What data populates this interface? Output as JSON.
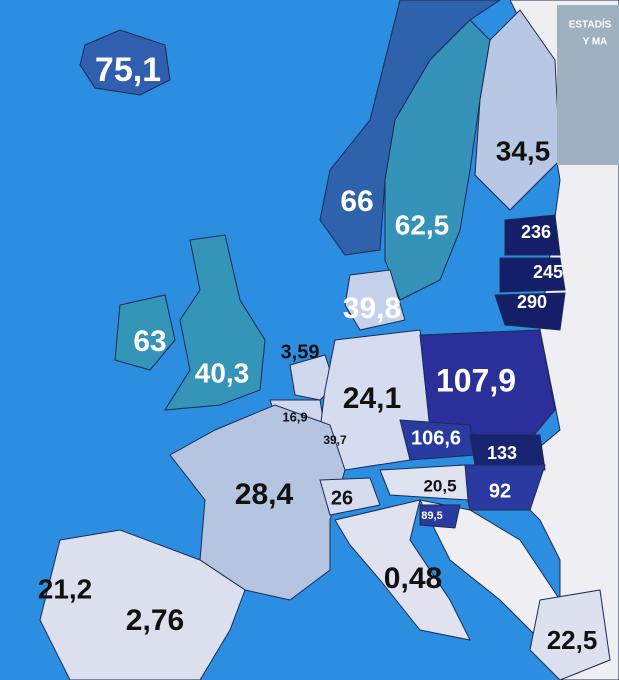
{
  "header": {
    "line1": "ESTADÍS",
    "line2": "Y MA"
  },
  "regions": [
    {
      "label": "75,1"
    },
    {
      "label": "66"
    },
    {
      "label": "62,5"
    },
    {
      "label": "34,5"
    },
    {
      "label": "236"
    },
    {
      "label": "245"
    },
    {
      "label": "290"
    },
    {
      "label": "63"
    },
    {
      "label": "40,3"
    },
    {
      "label": "39,8"
    },
    {
      "label": "3,59"
    },
    {
      "label": "24,1"
    },
    {
      "label": "16,9"
    },
    {
      "label": "39,7"
    },
    {
      "label": "107,9"
    },
    {
      "label": "106,6"
    },
    {
      "label": "133"
    },
    {
      "label": "92"
    },
    {
      "label": "20,5"
    },
    {
      "label": "89,5"
    },
    {
      "label": "28,4"
    },
    {
      "label": "26"
    },
    {
      "label": "0,48"
    },
    {
      "label": "21,2"
    },
    {
      "label": "2,76"
    },
    {
      "label": "22,5"
    }
  ]
}
